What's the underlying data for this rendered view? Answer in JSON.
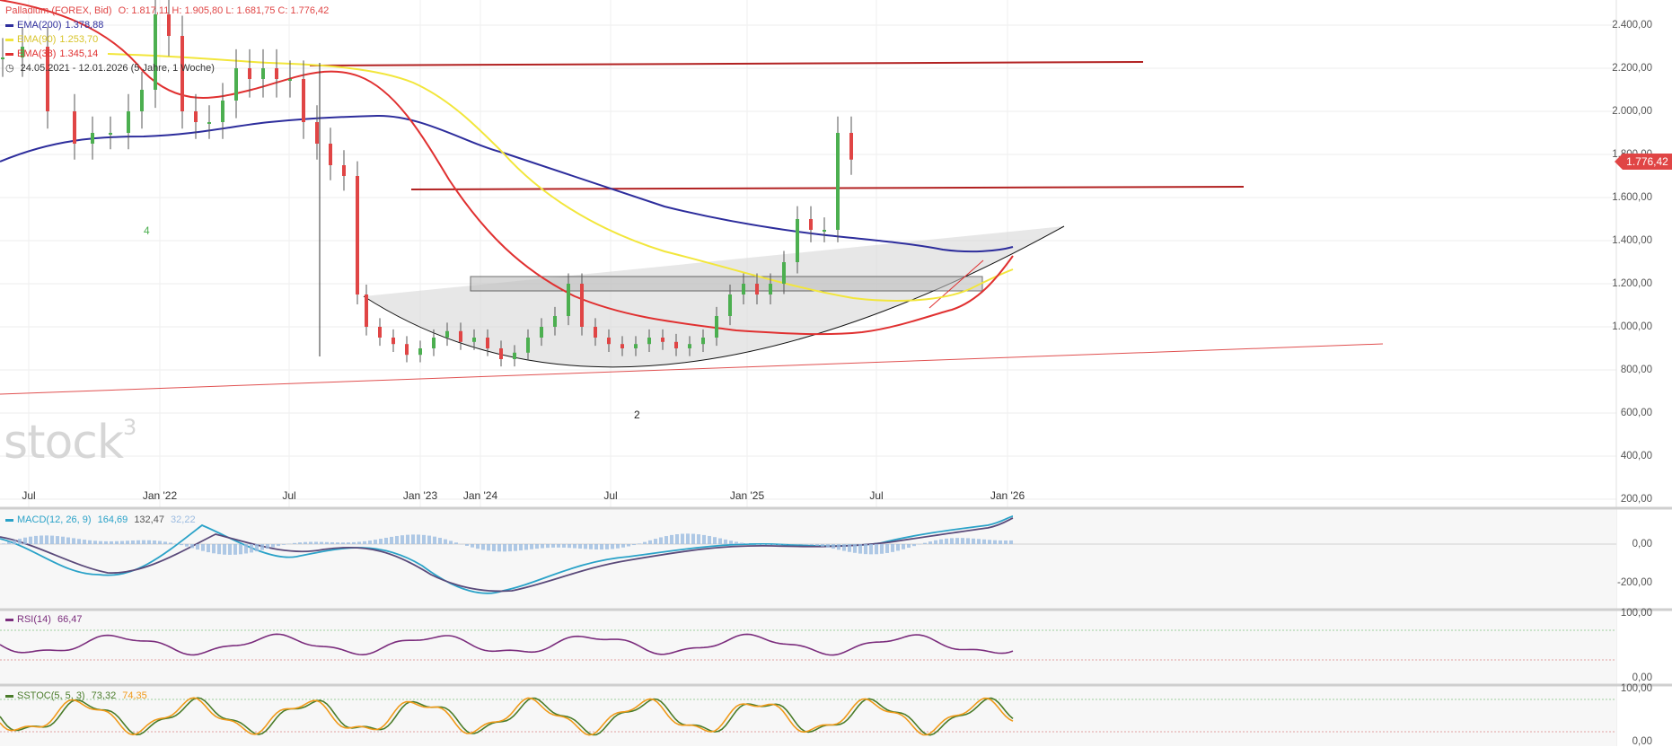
{
  "chart_data": [
    {
      "type": "candlestick",
      "title": "Palladium (FOREX, Bid)",
      "ohlc_label": "O: 1.817,11  H: 1.905,80  L: 1.681,75  C: 1.776,42",
      "period_label": "24.05.2021 - 12.01.2026  (5 Jahre, 1 Woche)",
      "last_price": "1.776,42",
      "yticks": [
        "2.400,00",
        "2.200,00",
        "2.000,00",
        "1.800,00",
        "1.600,00",
        "1.400,00",
        "1.200,00",
        "1.000,00",
        "800,00",
        "600,00",
        "400,00",
        "200,00"
      ],
      "xticks": [
        "Jul",
        "Jan '22",
        "Jul",
        "Jan '23",
        "Jan '24",
        "Jul",
        "Jan '25",
        "Jul",
        "Jan '26"
      ],
      "ylim": [
        200,
        2400
      ],
      "annotations": [
        "4",
        "2"
      ],
      "series": [
        {
          "name": "EMA(200)",
          "value": "1.378,88",
          "color": "#2d2d9c"
        },
        {
          "name": "EMA(90)",
          "value": "1.253,70",
          "color": "#f2e63b"
        },
        {
          "name": "EMA(38)",
          "value": "1.345,14",
          "color": "#e03030"
        }
      ],
      "price_series": {
        "x": [
          0,
          22,
          50,
          80,
          100,
          120,
          140,
          155,
          170,
          185,
          200,
          215,
          230,
          245,
          260,
          275,
          290,
          305,
          320,
          335,
          350,
          365,
          380,
          395,
          405,
          420,
          435,
          450,
          465,
          480,
          495,
          510,
          525,
          540,
          555,
          570,
          585,
          600,
          615,
          630,
          645,
          660,
          675,
          690,
          705,
          720,
          735,
          750,
          765,
          780,
          795,
          810,
          825,
          840,
          855,
          870,
          885,
          900,
          915,
          930,
          945
        ],
        "close": [
          2250,
          2300,
          2000,
          1850,
          1900,
          1900,
          2000,
          2100,
          2450,
          2350,
          2000,
          1950,
          1950,
          2050,
          2200,
          2150,
          2200,
          2150,
          2150,
          1950,
          1850,
          1750,
          1700,
          1150,
          1000,
          950,
          920,
          870,
          900,
          950,
          980,
          930,
          950,
          900,
          850,
          880,
          950,
          1000,
          1050,
          1200,
          1000,
          950,
          920,
          900,
          920,
          950,
          930,
          900,
          920,
          950,
          1050,
          1150,
          1200,
          1150,
          1200,
          1300,
          1500,
          1450,
          1450,
          1900,
          1776
        ]
      }
    },
    {
      "type": "line",
      "title": "MACD(12, 26, 9)",
      "values_label": [
        "164,69",
        "132,47",
        "32,22"
      ],
      "yticks": [
        "0,00",
        "-200,00"
      ],
      "series": [
        {
          "name": "MACD",
          "color": "#2aa2c8"
        },
        {
          "name": "Signal",
          "color": "#5a4a7a"
        },
        {
          "name": "Histogram",
          "color": "#9bbbe0"
        }
      ]
    },
    {
      "type": "line",
      "title": "RSI(14)",
      "values_label": [
        "66,47"
      ],
      "yticks": [
        "100,00",
        "0,00"
      ],
      "series": [
        {
          "name": "RSI",
          "color": "#7b2d7d"
        }
      ]
    },
    {
      "type": "line",
      "title": "SSTOC(5, 5, 3)",
      "values_label": [
        "73,32",
        "74,35"
      ],
      "yticks": [
        "100,00",
        "0,00"
      ],
      "series": [
        {
          "name": "%K",
          "color": "#4a7c2a"
        },
        {
          "name": "%D",
          "color": "#f09a1a"
        }
      ]
    }
  ],
  "watermark": "stock3"
}
